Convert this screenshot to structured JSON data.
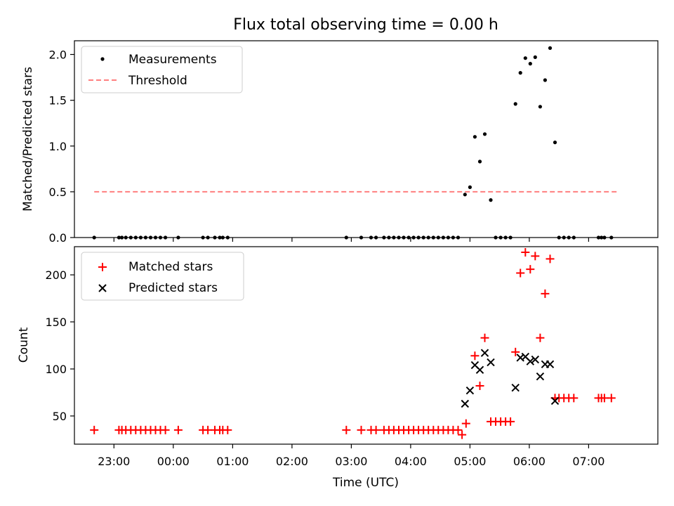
{
  "figure": {
    "title": "Flux total observing time = 0.00 h",
    "xlabel": "Time (UTC)"
  },
  "colors": {
    "measurements": "#000000",
    "threshold": "#ff7f7f",
    "matched": "#ff0000",
    "predicted": "#000000"
  },
  "chart_data": [
    {
      "type": "scatter",
      "panel": "top",
      "ylabel": "Matched/Predicted stars",
      "xlim": [
        "22:20",
        "08:10"
      ],
      "ylim": [
        0,
        2.15
      ],
      "yticks": [
        0.0,
        0.5,
        1.0,
        1.5,
        2.0
      ],
      "ytick_labels": [
        "0.0",
        "0.5",
        "1.0",
        "1.5",
        "2.0"
      ],
      "grid": false,
      "legend": "top-left",
      "series": [
        {
          "name": "Measurements",
          "marker": "dot",
          "x": [
            "22:40",
            "23:05",
            "23:08",
            "23:12",
            "23:17",
            "23:22",
            "23:27",
            "23:32",
            "23:37",
            "23:42",
            "23:47",
            "23:52",
            "00:05",
            "00:30",
            "00:35",
            "00:42",
            "00:47",
            "00:50",
            "00:55",
            "02:55",
            "03:10",
            "03:20",
            "03:25",
            "03:33",
            "03:38",
            "03:43",
            "03:48",
            "03:53",
            "03:58",
            "04:03",
            "04:08",
            "04:13",
            "04:18",
            "04:23",
            "04:28",
            "04:33",
            "04:38",
            "04:43",
            "04:48",
            "04:55",
            "05:00",
            "05:05",
            "05:10",
            "05:15",
            "05:21",
            "05:26",
            "05:31",
            "05:36",
            "05:41",
            "05:46",
            "05:51",
            "05:56",
            "06:01",
            "06:06",
            "06:11",
            "06:16",
            "06:21",
            "06:26",
            "06:30",
            "06:35",
            "06:40",
            "06:45",
            "07:10",
            "07:13",
            "07:16",
            "07:23"
          ],
          "y": [
            0,
            0,
            0,
            0,
            0,
            0,
            0,
            0,
            0,
            0,
            0,
            0,
            0,
            0,
            0,
            0,
            0,
            0,
            0,
            0,
            0,
            0,
            0,
            0,
            0,
            0,
            0,
            0,
            0,
            0,
            0,
            0,
            0,
            0,
            0,
            0,
            0,
            0,
            0,
            0.47,
            0.55,
            1.1,
            0.83,
            1.13,
            0.41,
            0,
            0,
            0,
            0,
            1.46,
            1.8,
            1.96,
            1.9,
            1.97,
            1.43,
            1.72,
            2.07,
            1.04,
            0,
            0,
            0,
            0,
            0,
            0,
            0,
            0
          ]
        },
        {
          "name": "Threshold",
          "style": "dashed",
          "x": [
            "22:40",
            "07:30"
          ],
          "y": [
            0.5,
            0.5
          ]
        }
      ]
    },
    {
      "type": "scatter",
      "panel": "bottom",
      "ylabel": "Count",
      "xlim": [
        "22:20",
        "08:10"
      ],
      "ylim": [
        20,
        230
      ],
      "yticks": [
        50,
        100,
        150,
        200
      ],
      "ytick_labels": [
        "50",
        "100",
        "150",
        "200"
      ],
      "xticks": [
        "23:00",
        "00:00",
        "01:00",
        "02:00",
        "03:00",
        "04:00",
        "05:00",
        "06:00",
        "07:00"
      ],
      "xtick_labels": [
        "23:00",
        "00:00",
        "01:00",
        "02:00",
        "03:00",
        "04:00",
        "05:00",
        "06:00",
        "07:00"
      ],
      "grid": false,
      "legend": "top-left",
      "series": [
        {
          "name": "Matched stars",
          "marker": "plus",
          "x": [
            "22:40",
            "23:05",
            "23:08",
            "23:12",
            "23:17",
            "23:22",
            "23:27",
            "23:32",
            "23:37",
            "23:42",
            "23:47",
            "23:52",
            "00:05",
            "00:30",
            "00:35",
            "00:42",
            "00:47",
            "00:50",
            "00:55",
            "02:55",
            "03:10",
            "03:20",
            "03:25",
            "03:33",
            "03:38",
            "03:43",
            "03:48",
            "03:53",
            "03:58",
            "04:03",
            "04:08",
            "04:13",
            "04:18",
            "04:23",
            "04:28",
            "04:33",
            "04:38",
            "04:43",
            "04:48",
            "04:52",
            "04:56",
            "05:05",
            "05:10",
            "05:15",
            "05:21",
            "05:26",
            "05:31",
            "05:36",
            "05:41",
            "05:46",
            "05:51",
            "05:56",
            "06:01",
            "06:06",
            "06:11",
            "06:16",
            "06:21",
            "06:26",
            "06:30",
            "06:35",
            "06:40",
            "06:45",
            "07:10",
            "07:13",
            "07:16",
            "07:23"
          ],
          "y": [
            35,
            35,
            35,
            35,
            35,
            35,
            35,
            35,
            35,
            35,
            35,
            35,
            35,
            35,
            35,
            35,
            35,
            35,
            35,
            35,
            35,
            35,
            35,
            35,
            35,
            35,
            35,
            35,
            35,
            35,
            35,
            35,
            35,
            35,
            35,
            35,
            35,
            35,
            35,
            30,
            42,
            114,
            82,
            133,
            44,
            44,
            44,
            44,
            44,
            118,
            202,
            224,
            206,
            220,
            133,
            180,
            217,
            69,
            69,
            69,
            69,
            69,
            69,
            69,
            69,
            69
          ]
        },
        {
          "name": "Predicted stars",
          "marker": "x",
          "x": [
            "04:55",
            "05:00",
            "05:05",
            "05:10",
            "05:15",
            "05:21",
            "05:46",
            "05:51",
            "05:56",
            "06:01",
            "06:06",
            "06:11",
            "06:16",
            "06:21",
            "06:26"
          ],
          "y": [
            63,
            77,
            104,
            99,
            117,
            107,
            80,
            112,
            113,
            108,
            110,
            92,
            105,
            105,
            66
          ]
        }
      ]
    }
  ]
}
